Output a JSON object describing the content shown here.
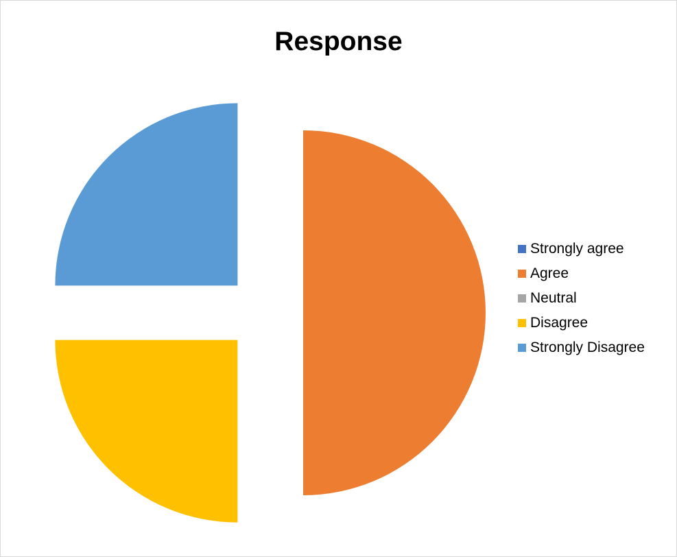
{
  "chart_data": {
    "type": "pie",
    "title": "Response",
    "categories": [
      "Strongly agree",
      "Agree",
      "Neutral",
      "Disagree",
      "Strongly Disagree"
    ],
    "values": [
      0,
      50,
      0,
      25,
      25
    ],
    "colors": [
      "#4472c4",
      "#ed7d31",
      "#a5a5a5",
      "#ffc000",
      "#5b9bd5"
    ],
    "exploded": true,
    "legend_position": "right"
  }
}
